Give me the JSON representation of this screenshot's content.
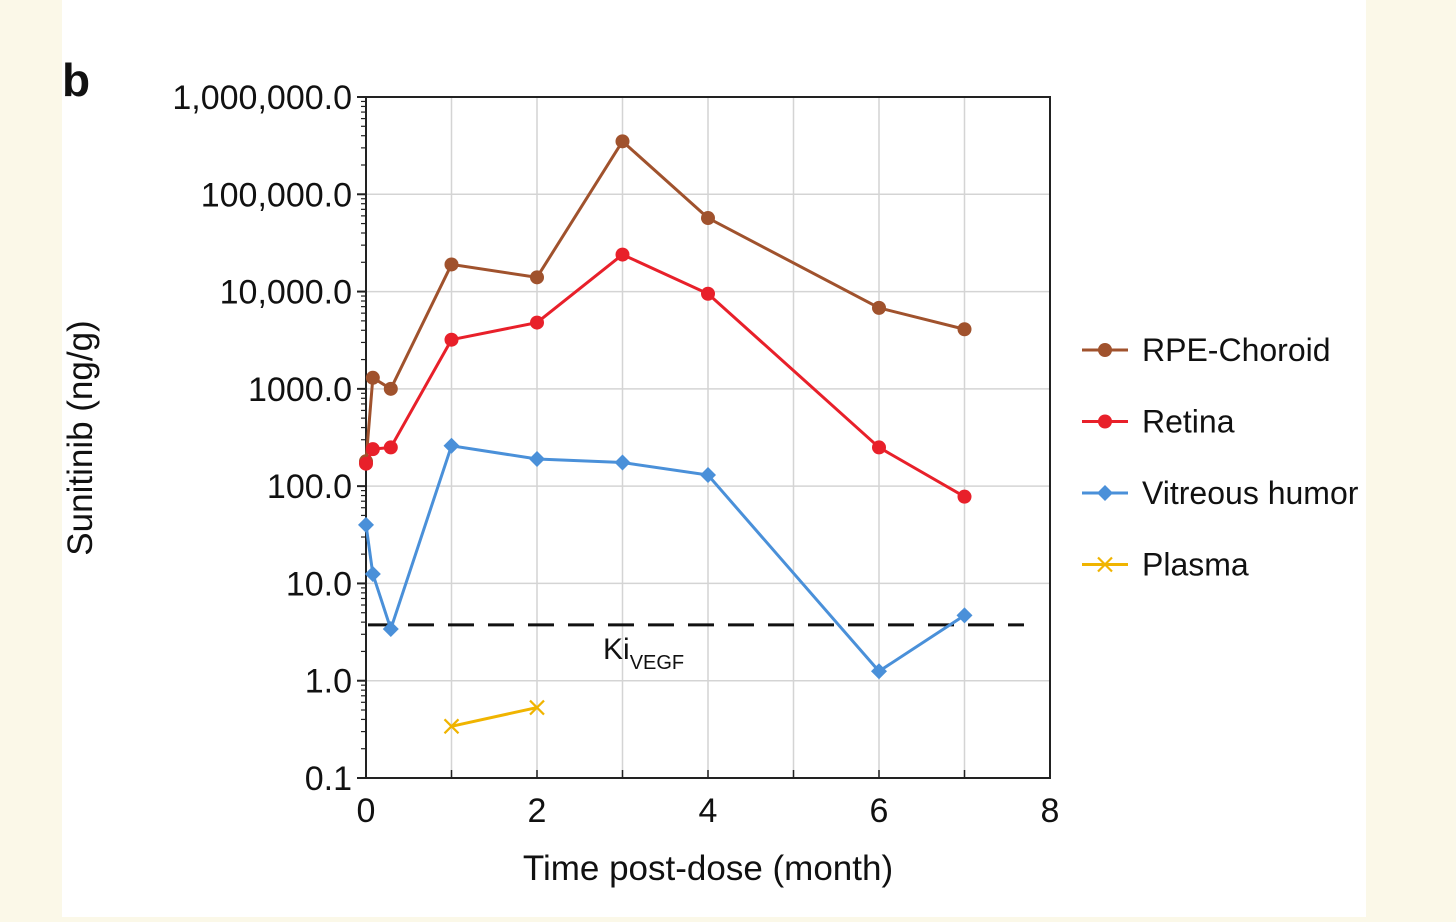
{
  "panel_label": "b",
  "chart_data": {
    "type": "line",
    "scale": "log",
    "xlabel": "Time post-dose (month)",
    "ylabel": "Sunitinib (ng/g)",
    "xlim": [
      0,
      8
    ],
    "ylim": [
      0.1,
      1000000
    ],
    "x_ticks": [
      0,
      2,
      4,
      6,
      8
    ],
    "x_tick_labels": [
      "0",
      "2",
      "4",
      "6",
      "8"
    ],
    "y_ticks": [
      0.1,
      1,
      10,
      100,
      1000,
      10000,
      100000,
      1000000
    ],
    "y_tick_labels": [
      "0.1",
      "1.0",
      "10.0",
      "100.0",
      "1000.0",
      "10,000.0",
      "100,000.0",
      "1,000,000.0"
    ],
    "grid": true,
    "legend_position": "right",
    "series": [
      {
        "name": "RPE-Choroid",
        "color": "#a0522d",
        "marker": "circle",
        "x": [
          0,
          0.08,
          0.29,
          1,
          2,
          3,
          4,
          6,
          7
        ],
        "y": [
          180,
          1300,
          1000,
          19000,
          14000,
          350000,
          57000,
          6800,
          4100
        ]
      },
      {
        "name": "Retina",
        "color": "#e8202a",
        "marker": "circle",
        "x": [
          0,
          0.08,
          0.29,
          1,
          2,
          3,
          4,
          6,
          7
        ],
        "y": [
          170,
          240,
          250,
          3200,
          4800,
          24000,
          9500,
          250,
          78
        ]
      },
      {
        "name": "Vitreous humor",
        "color": "#4a90d9",
        "marker": "diamond",
        "x": [
          0,
          0.08,
          0.29,
          1,
          2,
          3,
          4,
          6,
          7
        ],
        "y": [
          40,
          12.5,
          3.4,
          260,
          190,
          175,
          130,
          1.25,
          4.7
        ]
      },
      {
        "name": "Plasma",
        "color": "#f0b400",
        "marker": "x",
        "x": [
          1,
          2
        ],
        "y": [
          0.34,
          0.53
        ]
      }
    ],
    "reference_line": {
      "label_main": "Ki",
      "label_sub": "VEGF",
      "value": 3.75,
      "style": "dashed",
      "color": "#111111"
    }
  }
}
